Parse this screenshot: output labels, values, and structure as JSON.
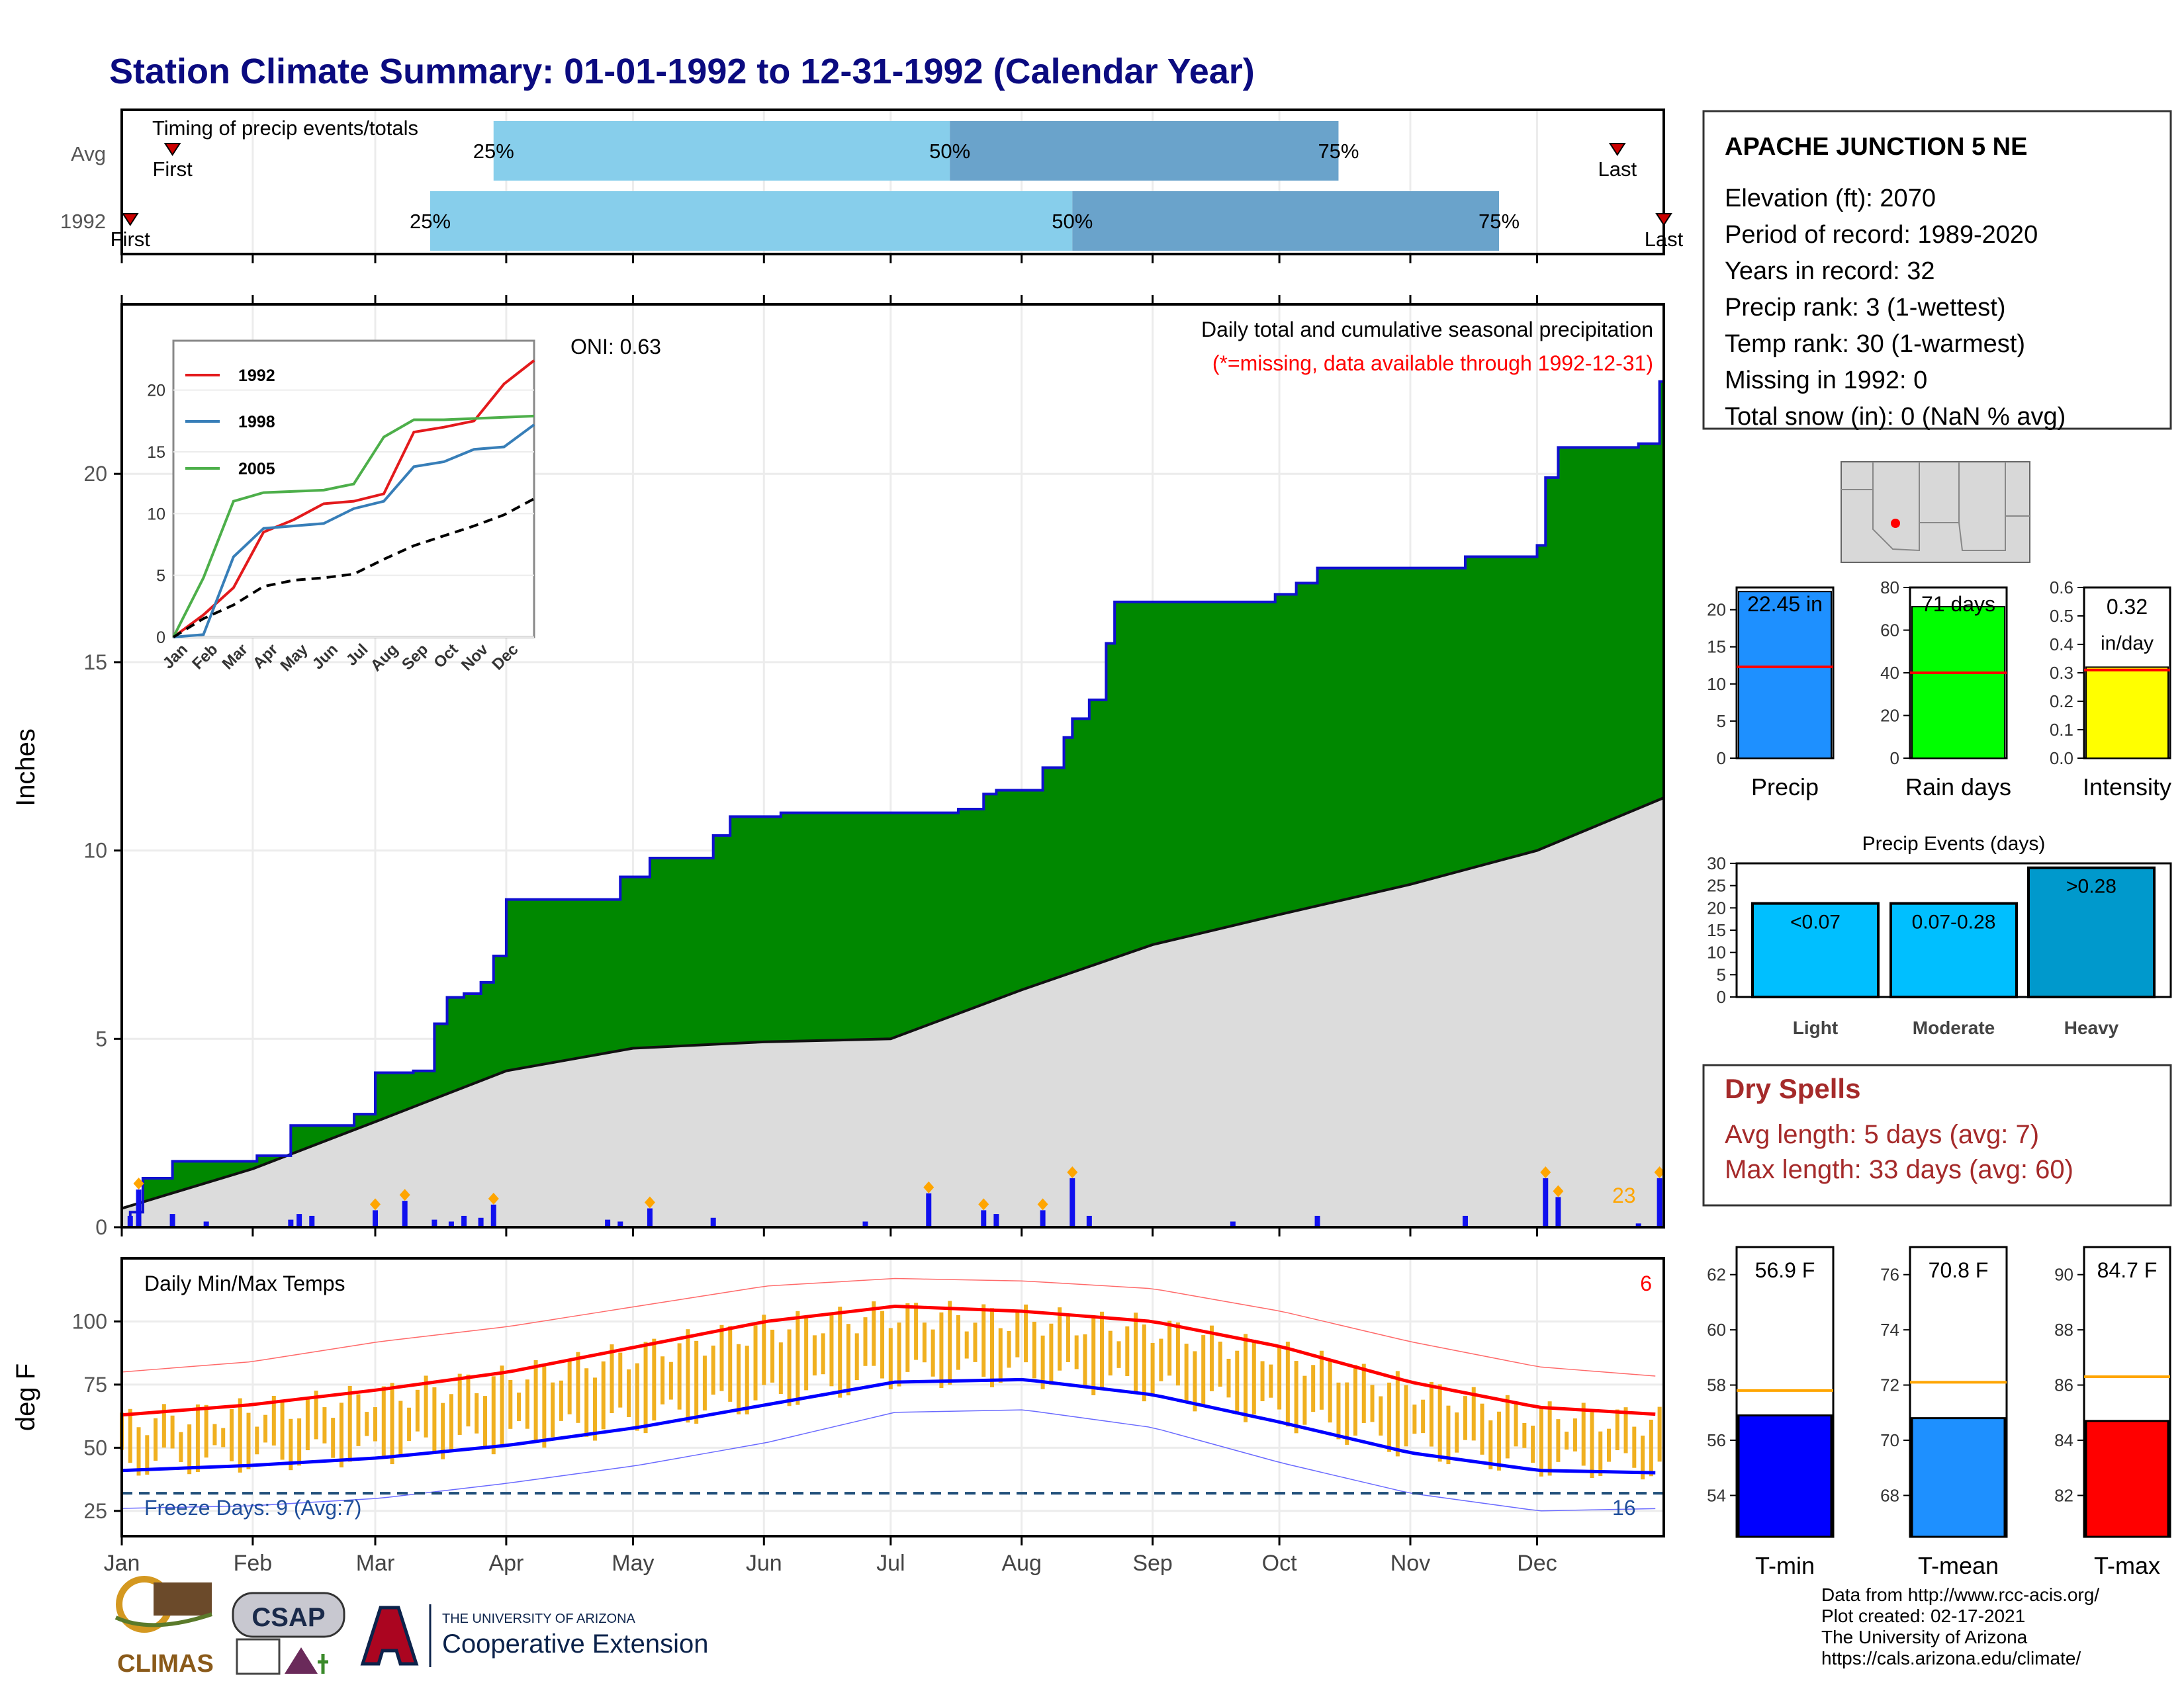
{
  "title": "Station Climate Summary: 01-01-1992 to 12-31-1992 (Calendar Year)",
  "colors": {
    "title": "#0b0b80",
    "rain_area": "#008800",
    "avg_area": "#dcdcdc",
    "cum_line": "#1010d0",
    "bar_light": "#87ceeb",
    "bar_dark": "#6aa3cb",
    "precip_bar": "#1e90ff",
    "raindays_bar": "#00ff00",
    "intensity_bar": "#ffff00",
    "event_bar": "#00bfff",
    "event_heavy": "#0099cc",
    "temp_bar": "#f0b020",
    "tmax": "#ff0000",
    "tmin": "#0000ff",
    "dry": "#a52a2a",
    "marker": "#ffa500"
  },
  "timing": {
    "label": "Timing of precip events/totals",
    "rows": [
      {
        "name": "Avg",
        "first_label": "First",
        "last_label": "Last",
        "first_day": 13,
        "last_day": 355,
        "p25": 89,
        "p50": 197,
        "p75": 289,
        "p25_label": "25%",
        "p50_label": "50%",
        "p75_label": "75%"
      },
      {
        "name": "1992",
        "first_label": "First",
        "last_label": "Last",
        "first_day": 3,
        "last_day": 366,
        "p25": 74,
        "p50": 226,
        "p75": 327,
        "p25_label": "25%",
        "p50_label": "50%",
        "p75_label": "75%"
      }
    ]
  },
  "station": {
    "name": "APACHE JUNCTION 5 NE",
    "lines": [
      "Elevation (ft): 2070",
      "Period of record: 1989-2020",
      "Years in record: 32",
      "Precip rank: 3 (1-wettest)",
      "Temp rank: 30 (1-warmest)",
      "Missing in 1992: 0",
      "Total snow (in): 0 (NaN % avg)"
    ]
  },
  "main": {
    "ylabel": "Inches",
    "title": "Daily total and cumulative seasonal precipitation",
    "subtitle": "(*=missing, data available through 1992-12-31)",
    "oni": "ONI: 0.63",
    "count_label": "23",
    "month_labels": [
      "Jan",
      "Feb",
      "Mar",
      "Apr",
      "May",
      "Jun",
      "Jul",
      "Aug",
      "Sep",
      "Oct",
      "Nov",
      "Dec"
    ]
  },
  "inset": {
    "legend": [
      "1992",
      "1998",
      "2005"
    ],
    "month_labels": [
      "Jan",
      "Feb",
      "Mar",
      "Apr",
      "May",
      "Jun",
      "Jul",
      "Aug",
      "Sep",
      "Oct",
      "Nov",
      "Dec"
    ]
  },
  "bars3": [
    {
      "title": "Precip",
      "value_label": "22.45 in",
      "value": 22.45,
      "avg": 12.3,
      "ymax": 23,
      "ticks": [
        0,
        5,
        10,
        15,
        20
      ]
    },
    {
      "title": "Rain days",
      "value_label": "71 days",
      "value": 71,
      "avg": 40,
      "ymax": 80,
      "ticks": [
        0,
        20,
        40,
        60,
        80
      ]
    },
    {
      "title": "Intensity",
      "value_label": "0.32",
      "unit": "in/day",
      "value": 0.32,
      "avg": 0.31,
      "ymax": 0.6,
      "ticks": [
        0.0,
        0.1,
        0.2,
        0.3,
        0.4,
        0.5,
        0.6
      ]
    }
  ],
  "events": {
    "title": "Precip Events (days)",
    "ymax": 30,
    "ticks": [
      0,
      5,
      10,
      15,
      20,
      25,
      30
    ],
    "bars": [
      {
        "cat": "Light",
        "label": "<0.07",
        "value": 21
      },
      {
        "cat": "Moderate",
        "label": "0.07-0.28",
        "value": 21
      },
      {
        "cat": "Heavy",
        "label": ">0.28",
        "value": 29
      }
    ]
  },
  "dry": {
    "title": "Dry Spells",
    "avg": "Avg length: 5 days (avg: 7)",
    "max": "Max length: 33 days (avg: 60)"
  },
  "temps": {
    "title": "Daily Min/Max Temps",
    "ylabel": "deg F",
    "hot_count": "6",
    "freeze": "Freeze Days: 9 (Avg:7)",
    "cold_count": "16",
    "month_labels": [
      "Jan",
      "Feb",
      "Mar",
      "Apr",
      "May",
      "Jun",
      "Jul",
      "Aug",
      "Sep",
      "Oct",
      "Nov",
      "Dec"
    ]
  },
  "tbars": [
    {
      "title": "T-min",
      "value_label": "56.9 F",
      "value": 56.9,
      "avg": 57.8,
      "ymin": 52.5,
      "ymax": 63,
      "ticks": [
        54,
        56,
        58,
        60,
        62
      ]
    },
    {
      "title": "T-mean",
      "value_label": "70.8 F",
      "value": 70.8,
      "avg": 72.1,
      "ymin": 66.5,
      "ymax": 77,
      "ticks": [
        68,
        70,
        72,
        74,
        76
      ]
    },
    {
      "title": "T-max",
      "value_label": "84.7 F",
      "value": 84.7,
      "avg": 86.3,
      "ymin": 80.5,
      "ymax": 91,
      "ticks": [
        82,
        84,
        86,
        88,
        90
      ]
    }
  ],
  "credits": [
    "Data from http://www.rcc-acis.org/",
    "Plot created: 02-17-2021",
    "The University of Arizona",
    "https://cals.arizona.edu/climate/"
  ],
  "logos": {
    "climas": "CLIMAS",
    "csap": "CSAP",
    "ua_small": "THE UNIVERSITY OF ARIZONA",
    "coop": "Cooperative Extension"
  },
  "chart_data": [
    {
      "type": "area",
      "title": "Daily total and cumulative seasonal precipitation",
      "ylabel": "Inches",
      "xlabel": "",
      "ylim": [
        0,
        24.5
      ],
      "series": [
        {
          "name": "1992",
          "x": [
            "01-01",
            "01-03",
            "01-06",
            "01-13",
            "01-21",
            "02-02",
            "02-10",
            "02-25",
            "03-01",
            "03-10",
            "03-15",
            "03-18",
            "03-22",
            "03-26",
            "03-29",
            "04-01",
            "04-25",
            "04-28",
            "05-05",
            "05-20",
            "05-24",
            "06-05",
            "06-25",
            "07-05",
            "07-10",
            "07-17",
            "07-23",
            "07-26",
            "08-01",
            "08-06",
            "08-11",
            "08-13",
            "08-17",
            "08-21",
            "08-23",
            "09-01",
            "09-20",
            "09-30",
            "10-05",
            "10-10",
            "10-25",
            "11-01",
            "11-14",
            "12-01",
            "12-03",
            "12-06",
            "12-25",
            "12-30",
            "12-31"
          ],
          "values": [
            0.0,
            0.4,
            1.3,
            1.75,
            1.75,
            1.9,
            2.7,
            3.0,
            4.1,
            4.15,
            5.4,
            6.1,
            6.2,
            6.5,
            7.2,
            8.7,
            8.7,
            9.3,
            9.8,
            10.4,
            10.9,
            11.0,
            11.0,
            11.0,
            11.0,
            11.1,
            11.5,
            11.6,
            11.6,
            12.2,
            13.0,
            13.5,
            14.0,
            15.5,
            16.6,
            16.6,
            16.6,
            16.8,
            17.1,
            17.5,
            17.5,
            17.5,
            17.8,
            18.1,
            19.9,
            20.7,
            20.8,
            22.45,
            22.45
          ]
        },
        {
          "name": "Average",
          "x": [
            "01-01",
            "02-01",
            "03-01",
            "04-01",
            "05-01",
            "06-01",
            "07-01",
            "08-01",
            "09-01",
            "10-01",
            "11-01",
            "12-01",
            "12-31"
          ],
          "values": [
            0.5,
            1.55,
            2.8,
            4.15,
            4.75,
            4.92,
            5.0,
            6.3,
            7.5,
            8.3,
            9.1,
            10.0,
            11.4
          ]
        }
      ],
      "daily_precip": [
        {
          "date": "01-03",
          "in": 0.3
        },
        {
          "date": "01-05",
          "in": 1.0
        },
        {
          "date": "01-13",
          "in": 0.35
        },
        {
          "date": "01-21",
          "in": 0.15
        },
        {
          "date": "02-10",
          "in": 0.2
        },
        {
          "date": "02-12",
          "in": 0.35
        },
        {
          "date": "02-15",
          "in": 0.3
        },
        {
          "date": "03-01",
          "in": 0.45
        },
        {
          "date": "03-08",
          "in": 0.7
        },
        {
          "date": "03-15",
          "in": 0.2
        },
        {
          "date": "03-19",
          "in": 0.15
        },
        {
          "date": "03-22",
          "in": 0.3
        },
        {
          "date": "03-26",
          "in": 0.25
        },
        {
          "date": "03-29",
          "in": 0.6
        },
        {
          "date": "04-25",
          "in": 0.2
        },
        {
          "date": "04-28",
          "in": 0.15
        },
        {
          "date": "05-05",
          "in": 0.5
        },
        {
          "date": "05-20",
          "in": 0.25
        },
        {
          "date": "06-25",
          "in": 0.15
        },
        {
          "date": "07-10",
          "in": 0.9
        },
        {
          "date": "07-23",
          "in": 0.45
        },
        {
          "date": "07-26",
          "in": 0.35
        },
        {
          "date": "08-06",
          "in": 0.45
        },
        {
          "date": "08-13",
          "in": 1.3
        },
        {
          "date": "08-17",
          "in": 0.3
        },
        {
          "date": "09-20",
          "in": 0.15
        },
        {
          "date": "10-10",
          "in": 0.3
        },
        {
          "date": "11-14",
          "in": 0.3
        },
        {
          "date": "12-03",
          "in": 1.3
        },
        {
          "date": "12-06",
          "in": 0.8
        },
        {
          "date": "12-25",
          "in": 0.1
        },
        {
          "date": "12-30",
          "in": 1.3
        }
      ]
    },
    {
      "type": "line",
      "title": "Inset cumulative comparison",
      "ylim": [
        0,
        24
      ],
      "series": [
        {
          "name": "1992",
          "month": [
            0,
            1,
            2,
            3,
            4,
            5,
            6,
            7,
            8,
            9,
            10,
            11,
            12
          ],
          "values": [
            0,
            1.8,
            4.0,
            8.5,
            9.5,
            10.8,
            11.0,
            11.6,
            16.6,
            17.0,
            17.5,
            20.5,
            22.4
          ]
        },
        {
          "name": "1998",
          "month": [
            0,
            1,
            2,
            3,
            4,
            5,
            6,
            7,
            8,
            9,
            10,
            11,
            12
          ],
          "values": [
            0,
            0.2,
            6.5,
            8.8,
            9.0,
            9.2,
            10.4,
            11.0,
            13.8,
            14.2,
            15.2,
            15.4,
            17.2
          ]
        },
        {
          "name": "2005",
          "month": [
            0,
            1,
            2,
            3,
            4,
            5,
            6,
            7,
            8,
            9,
            10,
            11,
            12
          ],
          "values": [
            0,
            4.8,
            11.0,
            11.7,
            11.8,
            11.9,
            12.4,
            16.2,
            17.6,
            17.6,
            17.7,
            17.8,
            17.9
          ]
        },
        {
          "name": "Average",
          "month": [
            0,
            1,
            2,
            3,
            4,
            5,
            6,
            7,
            8,
            9,
            10,
            11,
            12
          ],
          "values": [
            0,
            1.5,
            2.6,
            4.1,
            4.6,
            4.8,
            5.1,
            6.3,
            7.4,
            8.2,
            9.0,
            9.9,
            11.2
          ]
        }
      ]
    },
    {
      "type": "line",
      "title": "Daily Min/Max Temps",
      "ylabel": "deg F",
      "ylim": [
        15,
        125
      ],
      "series": [
        {
          "name": "Average max",
          "month": [
            0,
            1,
            2,
            3,
            4,
            5,
            6,
            7,
            8,
            9,
            10,
            11,
            12
          ],
          "values": [
            63,
            67,
            73,
            80,
            90,
            100,
            106,
            104,
            100,
            90,
            76,
            66,
            63
          ]
        },
        {
          "name": "Average min",
          "month": [
            0,
            1,
            2,
            3,
            4,
            5,
            6,
            7,
            8,
            9,
            10,
            11,
            12
          ],
          "values": [
            41,
            43,
            46,
            51,
            58,
            67,
            76,
            77,
            71,
            60,
            48,
            41,
            40
          ]
        },
        {
          "name": "Record max",
          "month": [
            0,
            1,
            2,
            3,
            4,
            5,
            6,
            7,
            8,
            9,
            10,
            11,
            12
          ],
          "values": [
            80,
            84,
            92,
            98,
            106,
            114,
            117,
            116,
            113,
            104,
            92,
            82,
            78
          ]
        },
        {
          "name": "Record min",
          "month": [
            0,
            1,
            2,
            3,
            4,
            5,
            6,
            7,
            8,
            9,
            10,
            11,
            12
          ],
          "values": [
            26,
            27,
            30,
            36,
            43,
            52,
            64,
            65,
            58,
            44,
            32,
            25,
            26
          ]
        }
      ]
    },
    {
      "type": "bar",
      "categories": [
        "Precip",
        "Rain days",
        "Intensity"
      ],
      "series": [
        {
          "name": "1992",
          "values": [
            22.45,
            71,
            0.32
          ]
        }
      ]
    },
    {
      "type": "bar",
      "title": "Precip Events (days)",
      "categories": [
        "Light",
        "Moderate",
        "Heavy"
      ],
      "values": [
        21,
        21,
        29
      ],
      "ylim": [
        0,
        30
      ]
    },
    {
      "type": "bar",
      "categories": [
        "T-min",
        "T-mean",
        "T-max"
      ],
      "values": [
        56.9,
        70.8,
        84.7
      ]
    }
  ]
}
